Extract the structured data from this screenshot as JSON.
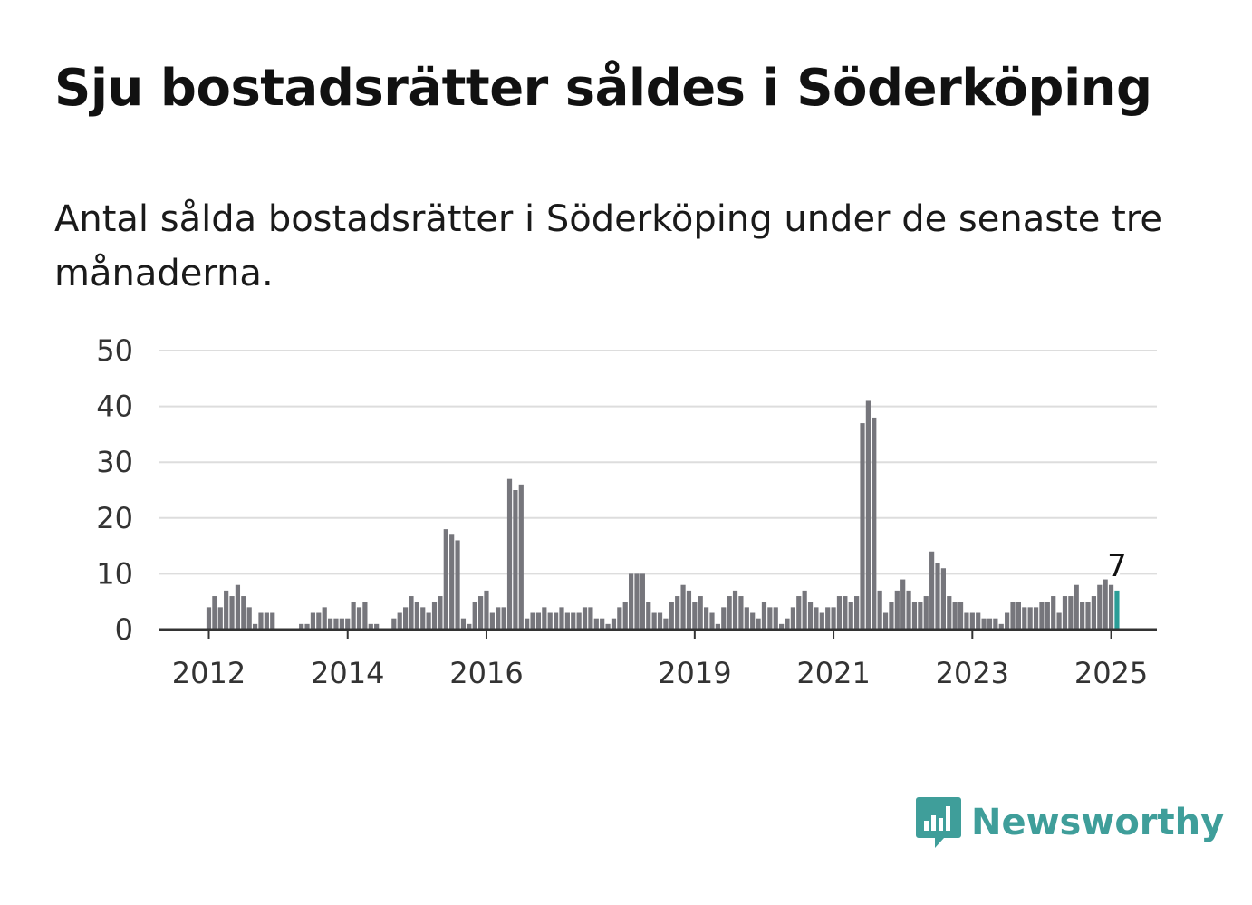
{
  "header": {
    "title": "Sju bostadsrätter såldes i Söderköping",
    "subtitle": "Antal sålda bostadsrätter i Söderköping under de senaste tre månaderna."
  },
  "brand": {
    "name": "Newsworthy",
    "color": "#3f9e9a",
    "icon": "newsworthy-logo-icon"
  },
  "chart_data": {
    "type": "bar",
    "x_start": "2012-01",
    "x_ticks": [
      {
        "label": "2012",
        "month": "2012-01"
      },
      {
        "label": "2014",
        "month": "2014-01"
      },
      {
        "label": "2016",
        "month": "2016-01"
      },
      {
        "label": "2019",
        "month": "2019-01"
      },
      {
        "label": "2021",
        "month": "2021-01"
      },
      {
        "label": "2023",
        "month": "2023-01"
      },
      {
        "label": "2025",
        "month": "2025-01"
      }
    ],
    "y_ticks": [
      0,
      10,
      20,
      30,
      40,
      50
    ],
    "ylim": [
      0,
      50
    ],
    "grid": true,
    "bar_color": "#76767c",
    "highlight_color": "#2a9d97",
    "highlight_label": "7",
    "values": [
      4,
      6,
      4,
      7,
      6,
      8,
      6,
      4,
      1,
      3,
      3,
      3,
      0,
      0,
      0,
      0,
      1,
      1,
      3,
      3,
      4,
      2,
      2,
      2,
      2,
      5,
      4,
      5,
      1,
      1,
      0,
      0,
      2,
      3,
      4,
      6,
      5,
      4,
      3,
      5,
      6,
      18,
      17,
      16,
      2,
      1,
      5,
      6,
      7,
      3,
      4,
      4,
      27,
      25,
      26,
      2,
      3,
      3,
      4,
      3,
      3,
      4,
      3,
      3,
      3,
      4,
      4,
      2,
      2,
      1,
      2,
      4,
      5,
      10,
      10,
      10,
      5,
      3,
      3,
      2,
      5,
      6,
      8,
      7,
      5,
      6,
      4,
      3,
      1,
      4,
      6,
      7,
      6,
      4,
      3,
      2,
      5,
      4,
      4,
      1,
      2,
      4,
      6,
      7,
      5,
      4,
      3,
      4,
      4,
      6,
      6,
      5,
      6,
      37,
      41,
      38,
      7,
      3,
      5,
      7,
      9,
      7,
      5,
      5,
      6,
      14,
      12,
      11,
      6,
      5,
      5,
      3,
      3,
      3,
      2,
      2,
      2,
      1,
      3,
      5,
      5,
      4,
      4,
      4,
      5,
      5,
      6,
      3,
      6,
      6,
      8,
      5,
      5,
      6,
      8,
      9,
      8,
      7
    ]
  }
}
